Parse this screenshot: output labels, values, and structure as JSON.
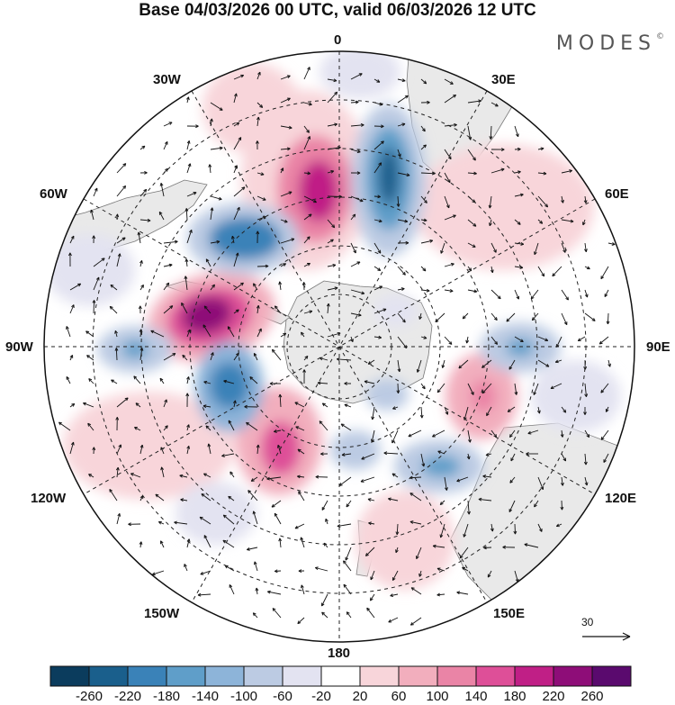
{
  "title": "Base 04/03/2026 00 UTC, valid 06/03/2026 12 UTC",
  "brand": "MODES",
  "brand_mark": "©",
  "meridian_labels": {
    "lon_0": "0",
    "lon_30e": "30E",
    "lon_60e": "60E",
    "lon_90e": "90E",
    "lon_120e": "120E",
    "lon_150e": "150E",
    "lon_180": "180",
    "lon_150w": "150W",
    "lon_120w": "120W",
    "lon_90w": "90W",
    "lon_60w": "60W",
    "lon_30w": "30W"
  },
  "vector_reference": "30",
  "colorbar": {
    "colors": [
      "#0b3c5d",
      "#1a5f8c",
      "#3a82b8",
      "#5f9ec9",
      "#8db4d9",
      "#bccbe3",
      "#e3e3f1",
      "#ffffff",
      "#f8d5da",
      "#f2aebd",
      "#ea84a6",
      "#de4f98",
      "#c01f86",
      "#8e0d78",
      "#5a0a6e"
    ],
    "ticks": [
      "-260",
      "-220",
      "-180",
      "-140",
      "-100",
      "-60",
      "-20",
      "20",
      "60",
      "100",
      "140",
      "180",
      "220",
      "260"
    ]
  },
  "anomaly_centers": [
    {
      "name": "positive-anomaly-a",
      "sign": "positive",
      "peak": 270
    },
    {
      "name": "positive-anomaly-b",
      "sign": "positive",
      "peak": 200
    },
    {
      "name": "positive-anomaly-c",
      "sign": "positive",
      "peak": 150
    },
    {
      "name": "positive-anomaly-d",
      "sign": "positive",
      "peak": 130
    },
    {
      "name": "positive-anomaly-e",
      "sign": "positive",
      "peak": 80
    },
    {
      "name": "negative-anomaly-a",
      "sign": "negative",
      "peak": -200
    },
    {
      "name": "negative-anomaly-b",
      "sign": "negative",
      "peak": -180
    },
    {
      "name": "negative-anomaly-c",
      "sign": "negative",
      "peak": -160
    },
    {
      "name": "negative-anomaly-d",
      "sign": "negative",
      "peak": -140
    },
    {
      "name": "negative-anomaly-e",
      "sign": "negative",
      "peak": -110
    },
    {
      "name": "negative-anomaly-f",
      "sign": "negative",
      "peak": -110
    }
  ]
}
